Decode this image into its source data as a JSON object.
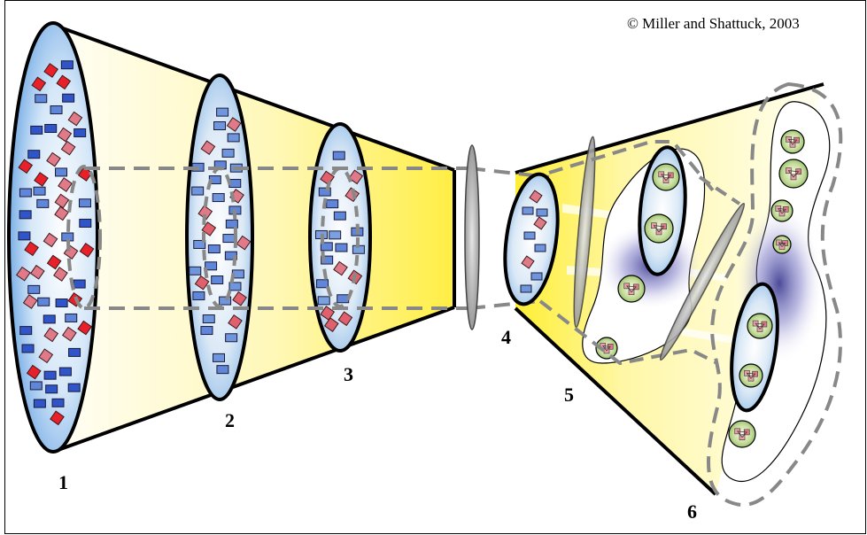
{
  "copyright": "© Miller and Shattuck, 2003",
  "stage_labels": [
    "1",
    "2",
    "3",
    "4",
    "5",
    "6"
  ],
  "colors": {
    "frame": "#000000",
    "funnel_yellow": "#ffee55",
    "ellipse_blue": "#7fb2e8",
    "dash_gray": "#888888",
    "blue_item": "#2f55c8",
    "red_item": "#e8202a",
    "pink_item": "#e07a88",
    "cluster_green": "#b3d48a",
    "purple_glow": "#2e2a8a"
  }
}
